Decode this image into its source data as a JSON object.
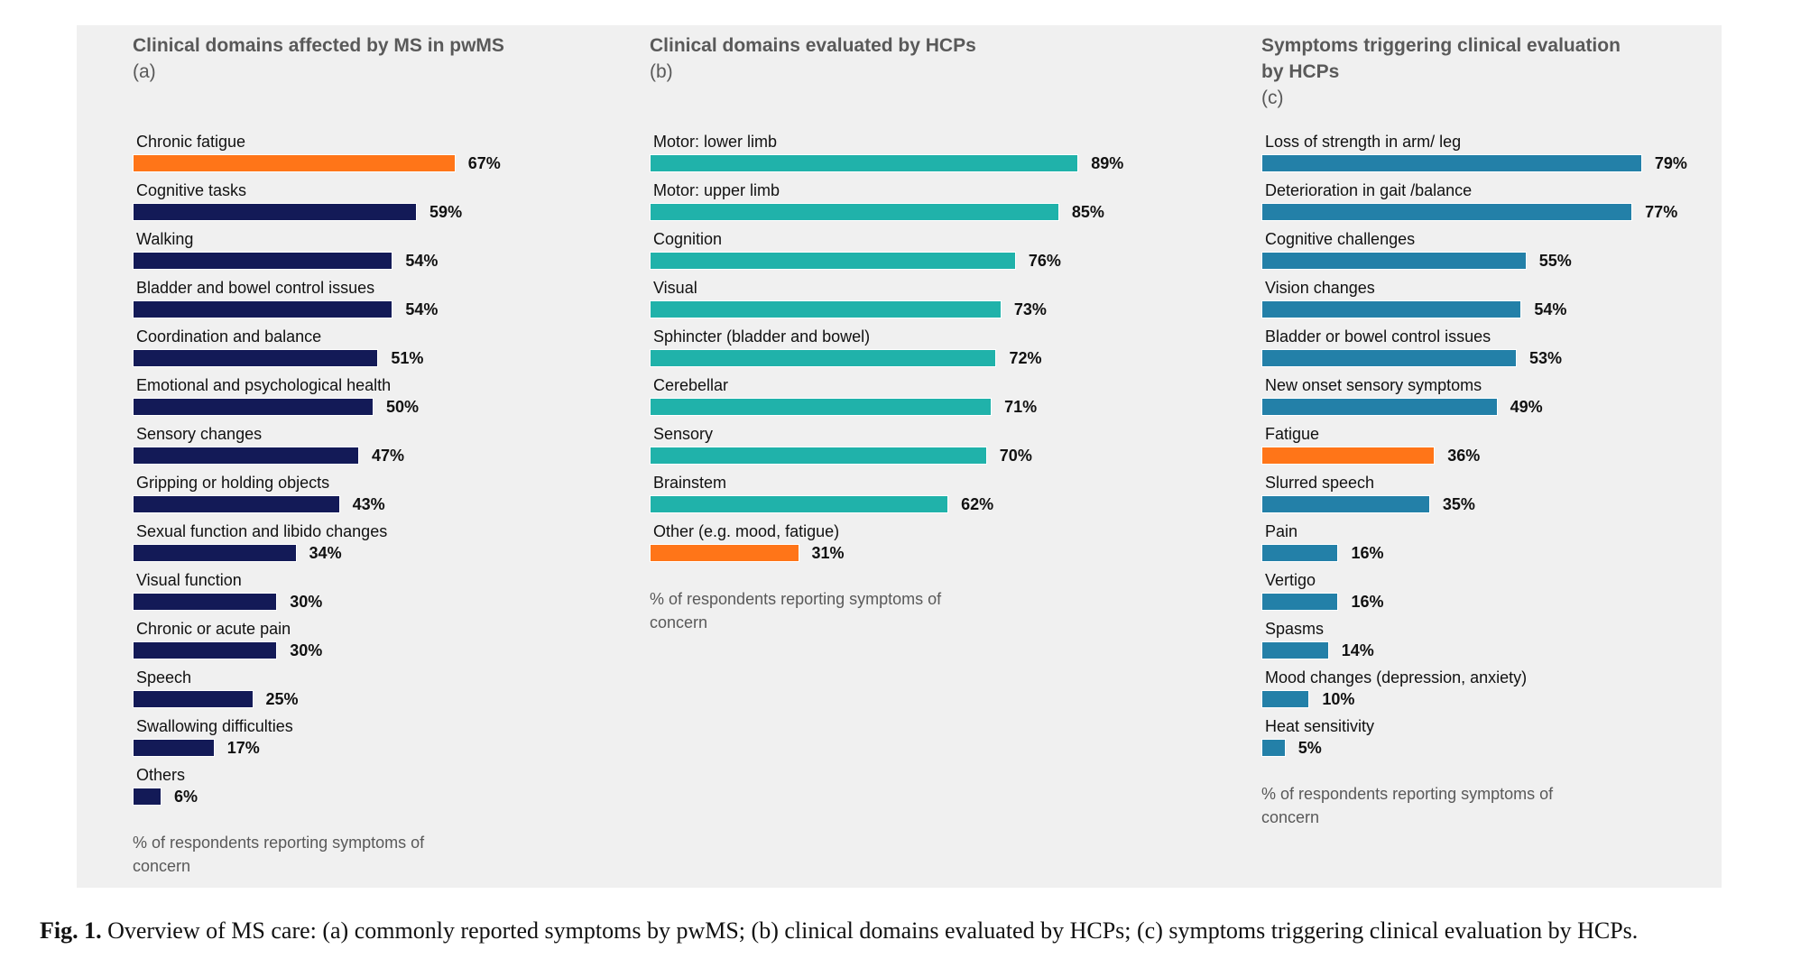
{
  "colors": {
    "highlight": "#ff7518",
    "navy": "#131a57",
    "teal": "#20b2aa",
    "blue": "#2380a8",
    "panel": "#f0f0f0"
  },
  "chart_data": [
    {
      "type": "bar",
      "orientation": "horizontal",
      "title": "Clinical domains affected by MS in pwMS",
      "panel_label": "(a)",
      "xlabel": "% of respondents reporting symptoms of concern",
      "bar_color": "#131a57",
      "highlight_color": "#ff7518",
      "categories": [
        "Chronic fatigue",
        "Cognitive tasks",
        "Walking",
        "Bladder and bowel control issues",
        "Coordination and balance",
        "Emotional and psychological health",
        "Sensory changes",
        "Gripping or holding objects",
        "Sexual function and libido changes",
        "Visual function",
        "Chronic or acute pain",
        "Speech",
        "Swallowing difficulties",
        "Others"
      ],
      "values": [
        67,
        59,
        54,
        54,
        51,
        50,
        47,
        43,
        34,
        30,
        30,
        25,
        17,
        6
      ],
      "value_labels": [
        "67%",
        "59%",
        "54%",
        "54%",
        "51%",
        "50%",
        "47%",
        "43%",
        "34%",
        "30%",
        "30%",
        "25%",
        "17%",
        "6%"
      ],
      "highlighted": [
        0
      ],
      "xlim": [
        0,
        100
      ]
    },
    {
      "type": "bar",
      "orientation": "horizontal",
      "title": "Clinical domains evaluated by HCPs",
      "panel_label": "(b)",
      "xlabel": "% of respondents reporting symptoms of concern",
      "bar_color": "#20b2aa",
      "highlight_color": "#ff7518",
      "categories": [
        "Motor: lower limb",
        "Motor: upper limb",
        "Cognition",
        "Visual",
        "Sphincter (bladder and bowel)",
        "Cerebellar",
        "Sensory",
        "Brainstem",
        "Other (e.g. mood, fatigue)"
      ],
      "values": [
        89,
        85,
        76,
        73,
        72,
        71,
        70,
        62,
        31
      ],
      "value_labels": [
        "89%",
        "85%",
        "76%",
        "73%",
        "72%",
        "71%",
        "70%",
        "62%",
        "31%"
      ],
      "highlighted": [
        8
      ],
      "xlim": [
        0,
        100
      ]
    },
    {
      "type": "bar",
      "orientation": "horizontal",
      "title": "Symptoms triggering clinical evaluation by HCPs",
      "panel_label": "(c)",
      "xlabel": "% of respondents reporting symptoms of concern",
      "bar_color": "#2380a8",
      "highlight_color": "#ff7518",
      "categories": [
        "Loss of strength in arm/ leg",
        "Deterioration in gait /balance",
        "Cognitive challenges",
        "Vision changes",
        "Bladder or bowel control issues",
        "New onset sensory symptoms",
        "Fatigue",
        "Slurred speech",
        "Pain",
        "Vertigo",
        "Spasms",
        "Mood changes (depression, anxiety)",
        "Heat sensitivity"
      ],
      "values": [
        79,
        77,
        55,
        54,
        53,
        49,
        36,
        35,
        16,
        16,
        14,
        10,
        5
      ],
      "value_labels": [
        "79%",
        "77%",
        "55%",
        "54%",
        "53%",
        "49%",
        "36%",
        "35%",
        "16%",
        "16%",
        "14%",
        "10%",
        "5%"
      ],
      "highlighted": [
        6
      ],
      "xlim": [
        0,
        100
      ]
    }
  ],
  "caption": {
    "label": "Fig. 1.",
    "text": "Overview of MS care: (a) commonly reported symptoms by pwMS; (b) clinical domains evaluated by HCPs; (c) symptoms triggering clinical evaluation by HCPs."
  }
}
